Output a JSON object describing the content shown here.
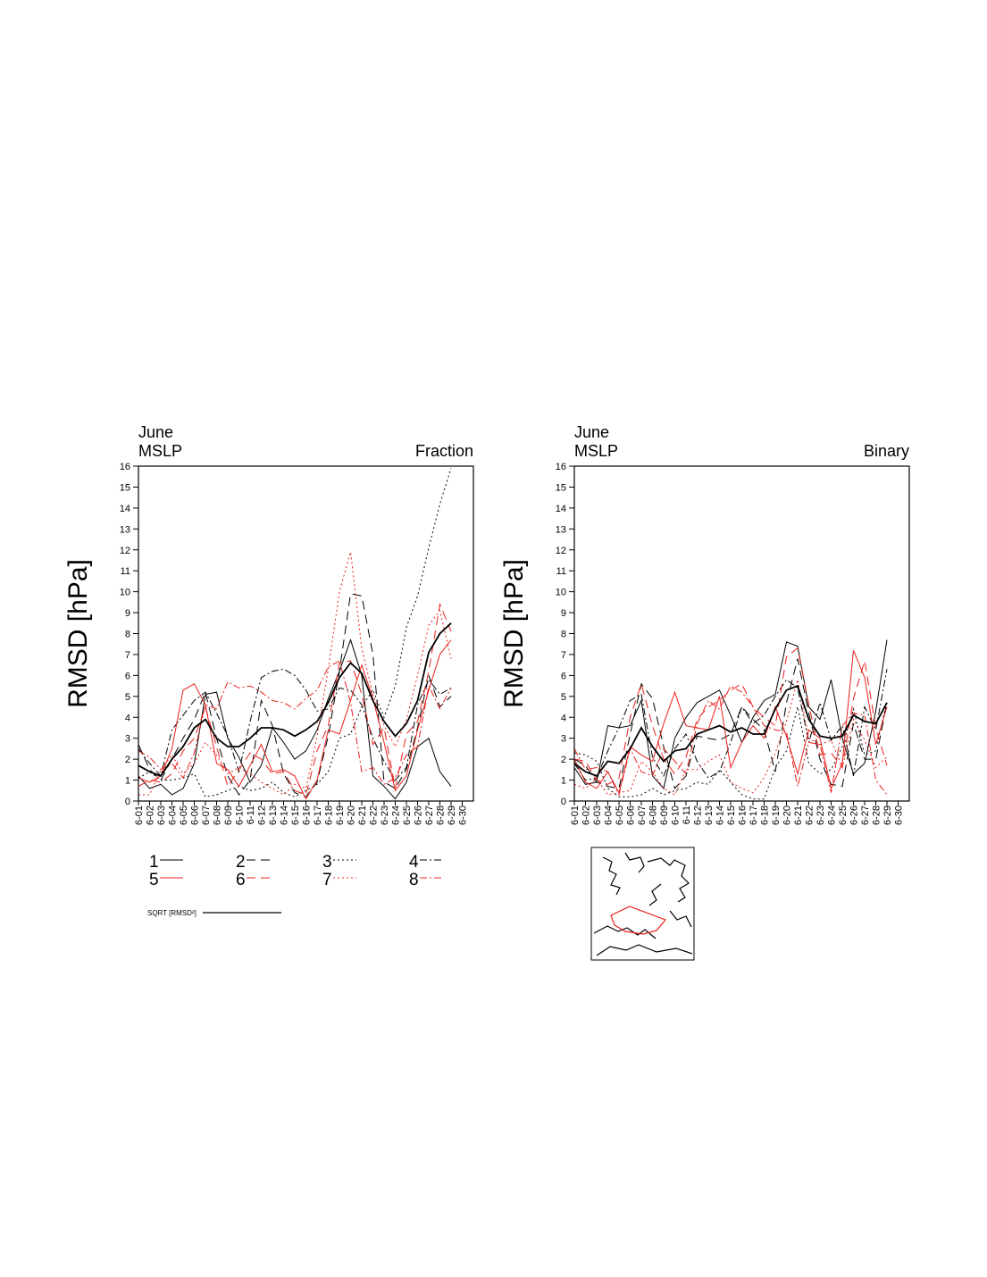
{
  "chart_data": [
    {
      "type": "line",
      "title_lines": [
        "June",
        "MSLP"
      ],
      "right_title": "Fraction",
      "y_label": "RMSD [hPa]",
      "categories": [
        "6-01",
        "6-02",
        "6-03",
        "6-04",
        "6-05",
        "6-06",
        "6-07",
        "6-08",
        "6-09",
        "6-10",
        "6-11",
        "6-12",
        "6-13",
        "6-14",
        "6-15",
        "6-16",
        "6-17",
        "6-18",
        "6-19",
        "6-20",
        "6-21",
        "6-22",
        "6-23",
        "6-24",
        "6-25",
        "6-26",
        "6-27",
        "6-28",
        "6-29",
        "6-30"
      ],
      "ylim": [
        0,
        16
      ],
      "yticks": [
        0,
        1,
        2,
        3,
        4,
        5,
        6,
        7,
        8,
        9,
        10,
        11,
        12,
        13,
        14,
        15,
        16
      ],
      "series": [
        {
          "name": "1",
          "color": "#000000",
          "style": "solid",
          "values": [
            1.2,
            0.6,
            0.8,
            0.3,
            0.6,
            1.8,
            5.1,
            5.2,
            3.0,
            2.1,
            0.9,
            1.7,
            3.5,
            2.8,
            2.0,
            2.4,
            3.4,
            4.9,
            6.2,
            7.7,
            6.0,
            1.2,
            0.7,
            0.1,
            0.9,
            2.6,
            3.0,
            1.4,
            0.7,
            null
          ]
        },
        {
          "name": "2",
          "color": "#000000",
          "style": "dash",
          "values": [
            2.7,
            1.5,
            1.0,
            2.0,
            3.0,
            3.9,
            5.2,
            3.0,
            1.2,
            0.3,
            1.0,
            4.8,
            3.6,
            1.3,
            0.4,
            0.2,
            0.9,
            3.1,
            6.2,
            9.9,
            9.8,
            7.0,
            0.9,
            0.6,
            1.5,
            3.5,
            6.0,
            4.5,
            5.0,
            null
          ]
        },
        {
          "name": "3",
          "color": "#000000",
          "style": "dot",
          "values": [
            1.1,
            1.4,
            1.0,
            1.0,
            1.1,
            1.3,
            0.2,
            0.3,
            0.5,
            0.7,
            0.5,
            0.6,
            0.9,
            0.4,
            0.2,
            0.5,
            0.8,
            1.4,
            3.0,
            3.2,
            4.5,
            5.3,
            4.0,
            5.5,
            8.3,
            9.8,
            12.1,
            14.2,
            15.9,
            null
          ]
        },
        {
          "name": "4",
          "color": "#000000",
          "style": "dashdot",
          "values": [
            2.5,
            1.8,
            1.2,
            3.4,
            4.1,
            4.8,
            5.2,
            4.2,
            3.1,
            1.4,
            3.8,
            5.9,
            6.2,
            6.3,
            6.0,
            5.3,
            4.3,
            4.4,
            5.4,
            5.3,
            4.6,
            3.0,
            1.9,
            1.0,
            1.6,
            4.6,
            5.8,
            5.1,
            5.4,
            null
          ]
        },
        {
          "name": "5",
          "color": "#e8201c",
          "style": "solid",
          "values": [
            1.1,
            0.9,
            1.2,
            2.5,
            5.3,
            5.6,
            4.6,
            1.8,
            1.5,
            0.7,
            1.7,
            2.7,
            1.4,
            1.5,
            1.2,
            0.1,
            1.0,
            3.4,
            3.2,
            4.8,
            6.5,
            4.9,
            2.8,
            0.5,
            1.2,
            3.4,
            5.3,
            7.0,
            7.7,
            null
          ]
        },
        {
          "name": "6",
          "color": "#e8201c",
          "style": "dash",
          "values": [
            0.7,
            1.0,
            0.9,
            1.3,
            2.4,
            3.0,
            4.5,
            2.6,
            0.7,
            1.5,
            2.3,
            2.0,
            1.3,
            1.4,
            0.5,
            0.3,
            2.4,
            3.6,
            6.6,
            6.7,
            5.1,
            2.7,
            3.5,
            0.6,
            3.2,
            3.8,
            6.2,
            9.4,
            8.1,
            null
          ]
        },
        {
          "name": "7",
          "color": "#e8201c",
          "style": "dot",
          "values": [
            0.3,
            0.3,
            1.5,
            2.2,
            1.3,
            1.8,
            2.8,
            2.2,
            1.3,
            1.6,
            1.3,
            0.9,
            0.6,
            0.3,
            0.8,
            0.6,
            3.1,
            6.3,
            10.0,
            11.9,
            7.3,
            5.1,
            3.6,
            2.6,
            3.9,
            6.0,
            8.4,
            9.1,
            6.8,
            null
          ]
        },
        {
          "name": "8",
          "color": "#e8201c",
          "style": "dashdot",
          "values": [
            2.4,
            2.1,
            1.5,
            1.8,
            1.1,
            2.3,
            4.6,
            4.4,
            5.7,
            5.4,
            5.5,
            5.2,
            4.8,
            4.7,
            4.4,
            4.9,
            5.3,
            6.4,
            6.7,
            4.7,
            1.4,
            1.6,
            0.8,
            1.1,
            2.2,
            2.6,
            5.5,
            4.4,
            5.4,
            null
          ]
        },
        {
          "name": "SQRT [RMSD²]",
          "color": "#000000",
          "style": "thick",
          "values": [
            1.7,
            1.4,
            1.2,
            2.0,
            2.6,
            3.5,
            3.9,
            3.0,
            2.6,
            2.6,
            3.0,
            3.5,
            3.5,
            3.4,
            3.1,
            3.4,
            3.8,
            4.7,
            5.9,
            6.6,
            6.1,
            4.8,
            3.8,
            3.1,
            3.7,
            4.8,
            7.1,
            8.0,
            8.5,
            null
          ]
        }
      ]
    },
    {
      "type": "line",
      "title_lines": [
        "June",
        "MSLP"
      ],
      "right_title": "Binary",
      "y_label": "RMSD [hPa]",
      "categories": [
        "6-01",
        "6-02",
        "6-03",
        "6-04",
        "6-05",
        "6-06",
        "6-07",
        "6-08",
        "6-09",
        "6-10",
        "6-11",
        "6-12",
        "6-13",
        "6-14",
        "6-15",
        "6-16",
        "6-17",
        "6-18",
        "6-19",
        "6-20",
        "6-21",
        "6-22",
        "6-23",
        "6-24",
        "6-25",
        "6-26",
        "6-27",
        "6-28",
        "6-29",
        "6-30"
      ],
      "ylim": [
        0,
        16
      ],
      "yticks": [
        0,
        1,
        2,
        3,
        4,
        5,
        6,
        7,
        8,
        9,
        10,
        11,
        12,
        13,
        14,
        15,
        16
      ],
      "series": [
        {
          "color": "#000000",
          "style": "solid",
          "values": [
            1.6,
            0.8,
            0.9,
            3.6,
            3.5,
            3.6,
            4.8,
            1.2,
            0.6,
            3.0,
            4.0,
            4.7,
            5.0,
            5.3,
            4.1,
            2.8,
            4.0,
            4.8,
            5.1,
            7.6,
            7.4,
            4.5,
            3.9,
            5.8,
            3.0,
            1.3,
            1.8,
            4.3,
            7.7,
            null
          ]
        },
        {
          "color": "#000000",
          "style": "dash",
          "values": [
            2.0,
            1.7,
            0.9,
            0.7,
            0.6,
            3.2,
            5.6,
            4.9,
            2.6,
            0.6,
            1.2,
            3.1,
            3.0,
            2.9,
            3.2,
            4.5,
            3.9,
            3.4,
            1.4,
            4.7,
            6.8,
            4.2,
            2.0,
            0.8,
            0.7,
            3.7,
            2.0,
            2.0,
            4.7,
            null
          ]
        },
        {
          "color": "#000000",
          "style": "dot",
          "values": [
            2.3,
            2.2,
            1.9,
            0.6,
            0.2,
            0.2,
            0.3,
            0.6,
            0.3,
            0.5,
            0.6,
            0.9,
            0.8,
            1.5,
            0.9,
            0.3,
            0.1,
            0.1,
            1.6,
            2.4,
            4.5,
            1.8,
            1.3,
            1.5,
            2.6,
            4.4,
            2.2,
            2.4,
            4.8,
            null
          ]
        },
        {
          "color": "#000000",
          "style": "dashdot",
          "values": [
            1.8,
            1.0,
            1.1,
            2.4,
            3.5,
            4.8,
            5.1,
            2.1,
            1.2,
            2.5,
            3.2,
            1.9,
            1.1,
            1.4,
            2.8,
            4.5,
            3.7,
            4.1,
            5.0,
            5.8,
            5.4,
            2.8,
            4.7,
            2.9,
            3.6,
            1.2,
            4.5,
            3.4,
            6.3,
            null
          ]
        },
        {
          "color": "#e8201c",
          "style": "solid",
          "values": [
            2.0,
            0.9,
            0.6,
            1.4,
            0.4,
            2.6,
            2.2,
            1.9,
            3.7,
            5.2,
            3.6,
            3.5,
            3.4,
            5.0,
            1.6,
            2.8,
            3.6,
            3.0,
            4.5,
            3.1,
            1.3,
            3.4,
            3.0,
            0.6,
            1.8,
            7.2,
            5.9,
            2.7,
            4.5,
            null
          ]
        },
        {
          "color": "#e8201c",
          "style": "dash",
          "values": [
            2.0,
            1.9,
            1.0,
            0.8,
            1.1,
            4.0,
            5.6,
            3.6,
            2.0,
            1.3,
            2.1,
            3.9,
            4.5,
            4.8,
            5.3,
            5.6,
            4.5,
            4.0,
            3.6,
            6.9,
            7.3,
            4.6,
            2.2,
            2.3,
            1.6,
            4.9,
            6.7,
            3.5,
            1.7,
            null
          ]
        },
        {
          "color": "#e8201c",
          "style": "dot",
          "values": [
            0.8,
            0.6,
            1.1,
            0.3,
            0.4,
            0.5,
            1.9,
            1.4,
            0.6,
            0.3,
            1.5,
            1.5,
            1.9,
            2.2,
            0.9,
            0.6,
            0.4,
            1.1,
            2.3,
            3.8,
            5.8,
            3.0,
            2.7,
            2.9,
            1.6,
            3.9,
            2.9,
            1.6,
            2.1,
            null
          ]
        },
        {
          "color": "#e8201c",
          "style": "dashdot",
          "values": [
            2.5,
            1.5,
            1.6,
            1.4,
            0.3,
            2.5,
            1.4,
            1.2,
            2.5,
            1.9,
            1.3,
            3.7,
            4.8,
            4.4,
            5.5,
            5.2,
            4.5,
            3.6,
            3.4,
            3.3,
            0.7,
            2.8,
            2.7,
            0.4,
            3.6,
            4.2,
            4.1,
            1.0,
            0.3,
            null
          ]
        },
        {
          "color": "#000000",
          "style": "thick",
          "values": [
            1.8,
            1.4,
            1.2,
            1.9,
            1.8,
            2.5,
            3.5,
            2.6,
            1.9,
            2.4,
            2.5,
            3.2,
            3.4,
            3.6,
            3.3,
            3.5,
            3.2,
            3.2,
            4.4,
            5.3,
            5.5,
            3.9,
            3.1,
            3.0,
            3.1,
            4.1,
            3.8,
            3.7,
            4.7,
            null
          ]
        }
      ]
    }
  ]
}
